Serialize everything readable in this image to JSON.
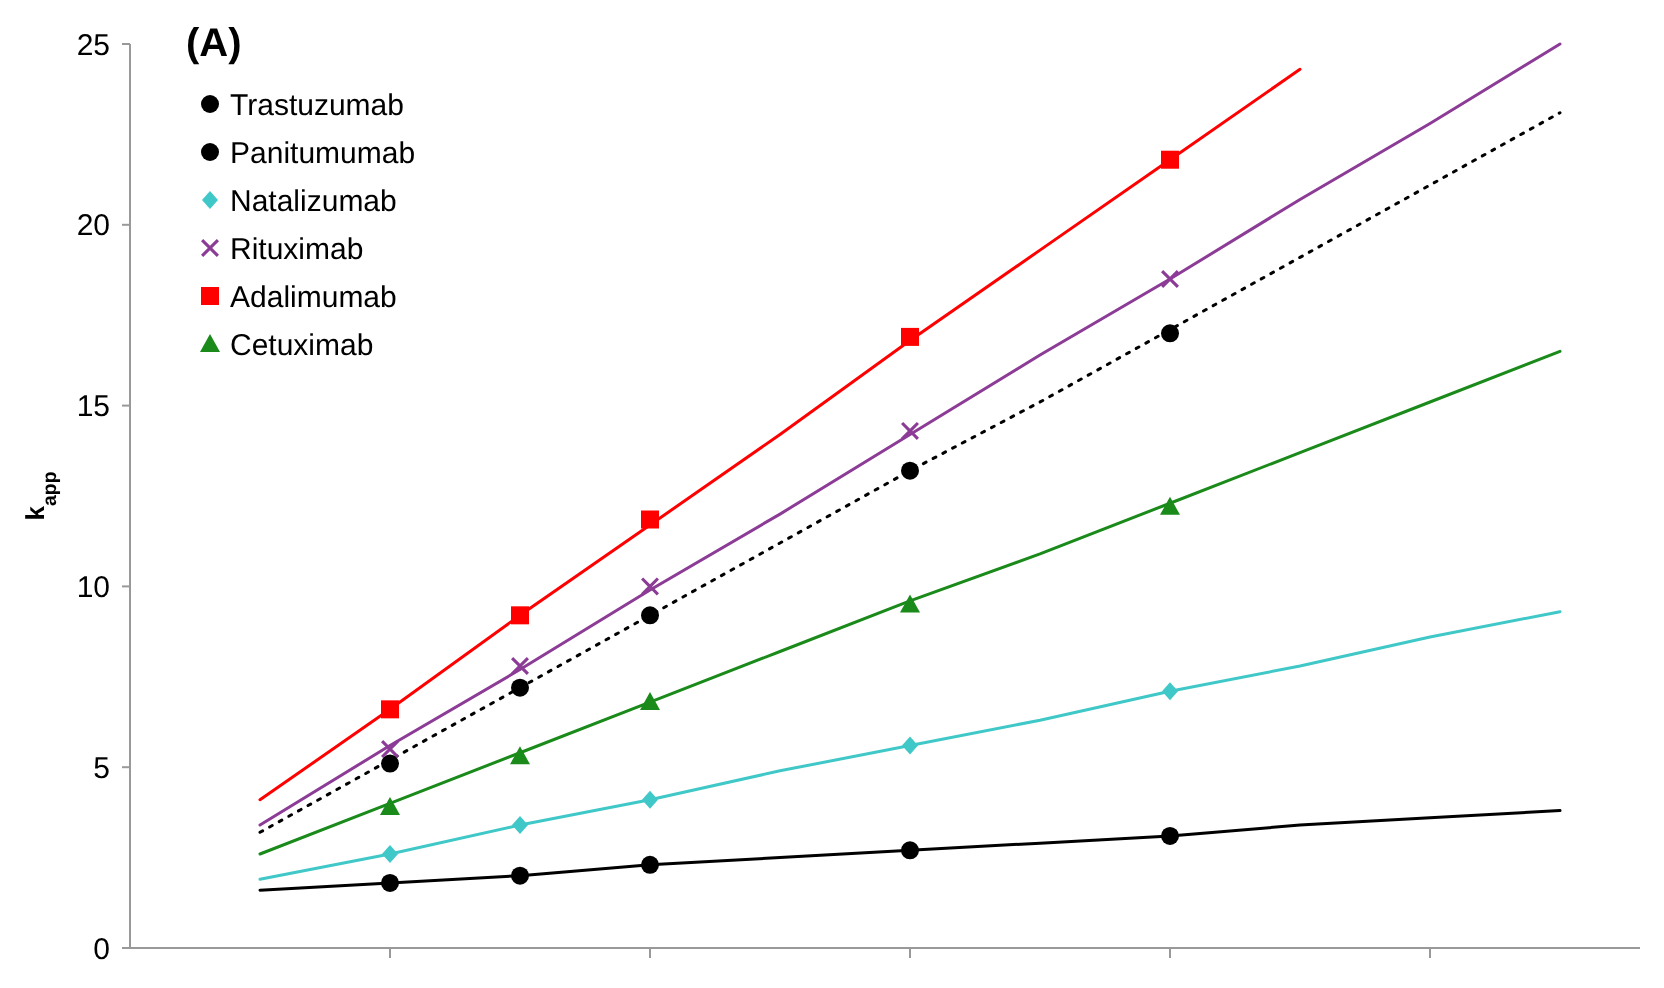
{
  "chart_data": {
    "type": "scatter",
    "title": "(A)",
    "ylabel": "k$_{app}$",
    "categories": [
      null,
      null,
      null,
      null,
      null,
      null,
      null,
      null,
      null,
      null,
      null,
      null
    ],
    "ylim": [
      0,
      25
    ],
    "yticks": [
      0,
      5,
      10,
      15,
      20,
      25
    ],
    "tick_labels": "y",
    "grid": false,
    "legend": "top left",
    "series": [
      {
        "name": "Trastuzumab",
        "color": "#000000",
        "marker": "circle",
        "values": [
          null,
          null,
          5.1,
          7.2,
          9.2,
          null,
          13.2,
          null,
          17.0,
          null,
          null,
          null
        ]
      },
      {
        "name": "Panitumumab",
        "color": "#000000",
        "marker": "circle",
        "values": [
          null,
          null,
          1.8,
          2.0,
          2.3,
          null,
          2.7,
          null,
          3.1,
          null,
          null,
          null
        ]
      },
      {
        "name": "Natalizumab",
        "color": "#40c8c8",
        "marker": "diamond",
        "values": [
          null,
          null,
          2.6,
          3.4,
          4.1,
          null,
          5.6,
          null,
          7.1,
          null,
          null,
          null
        ]
      },
      {
        "name": "Rituximab",
        "color": "#8c3c96",
        "marker": "cross",
        "values": [
          null,
          null,
          5.5,
          7.8,
          10.0,
          null,
          14.3,
          null,
          18.5,
          null,
          null,
          null
        ]
      },
      {
        "name": "Adalimumab",
        "color": "#ff0000",
        "marker": "square",
        "values": [
          null,
          null,
          6.6,
          9.2,
          11.85,
          null,
          16.9,
          null,
          21.8,
          null,
          null,
          null
        ]
      },
      {
        "name": "Cetuximab",
        "color": "#1a8a1a",
        "marker": "triangle",
        "values": [
          null,
          null,
          3.9,
          5.3,
          6.8,
          null,
          9.5,
          null,
          12.2,
          null,
          null,
          null
        ]
      },
      {
        "type": "line",
        "color": "#000000",
        "line_style": "dotted",
        "values": [
          null,
          3.2,
          5.2,
          7.2,
          9.2,
          11.2,
          13.2,
          15.1,
          17.1,
          19.1,
          21.1,
          23.1
        ]
      },
      {
        "type": "line",
        "color": "#000000",
        "line_style": "solid",
        "values": [
          null,
          1.6,
          1.8,
          2.0,
          2.3,
          2.5,
          2.7,
          2.9,
          3.1,
          3.4,
          3.6,
          3.8
        ]
      },
      {
        "type": "line",
        "color": "#40c8c8",
        "line_style": "solid",
        "values": [
          null,
          1.9,
          2.6,
          3.4,
          4.1,
          4.9,
          5.6,
          6.3,
          7.1,
          7.8,
          8.6,
          9.3
        ]
      },
      {
        "type": "line",
        "color": "#8c3c96",
        "line_style": "solid",
        "values": [
          null,
          3.4,
          5.6,
          7.7,
          9.9,
          12.0,
          14.2,
          16.4,
          18.5,
          20.7,
          22.8,
          25.0
        ]
      },
      {
        "type": "line",
        "color": "#ff0000",
        "line_style": "solid",
        "values": [
          null,
          4.1,
          6.6,
          9.2,
          11.7,
          14.2,
          16.8,
          19.3,
          21.8,
          24.3,
          null,
          null
        ]
      },
      {
        "type": "line",
        "color": "#1a8a1a",
        "line_style": "solid",
        "values": [
          null,
          2.6,
          4.0,
          5.4,
          6.8,
          8.2,
          9.6,
          10.9,
          12.3,
          13.7,
          15.1,
          16.5
        ]
      }
    ]
  }
}
